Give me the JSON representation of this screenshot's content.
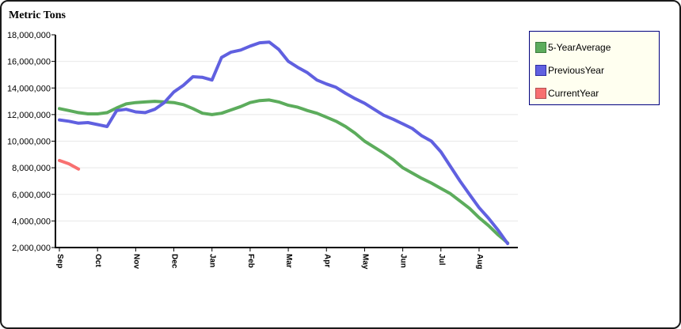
{
  "frame": {
    "background": "#ffffff",
    "border_color": "#1a1a1a"
  },
  "chart_data": {
    "type": "line",
    "title": "Metric Tons",
    "units": "metric tons (values_millions are millions of metric tons)",
    "x_axis": {
      "tick_labels": [
        "Sep",
        "Oct",
        "Nov",
        "Dec",
        "Jan",
        "Feb",
        "Mar",
        "Apr",
        "May",
        "Jun",
        "Jul",
        "Aug"
      ],
      "label_rotation_deg": 90
    },
    "y_axis": {
      "min": 2000000,
      "max": 18000000,
      "tick_step": 2000000,
      "tick_labels": [
        "18,000,000",
        "16,000,000",
        "14,000,000",
        "12,000,000",
        "10,000,000",
        "8,000,000",
        "6,000,000",
        "4,000,000",
        "2,000,000"
      ]
    },
    "grid": {
      "horizontal": true,
      "color": "#e8e8e8"
    },
    "series": [
      {
        "name": "5-YearAverage",
        "color": "#5cac5c",
        "x_start_month": 0,
        "x_step_months": 0.25,
        "values_millions": [
          12.45,
          12.3,
          12.15,
          12.05,
          12.05,
          12.15,
          12.5,
          12.8,
          12.9,
          12.95,
          13.0,
          12.95,
          12.9,
          12.75,
          12.45,
          12.1,
          12.0,
          12.1,
          12.35,
          12.6,
          12.9,
          13.05,
          13.1,
          12.95,
          12.7,
          12.55,
          12.3,
          12.1,
          11.8,
          11.5,
          11.1,
          10.6,
          10.0,
          9.55,
          9.1,
          8.6,
          8.0,
          7.6,
          7.2,
          6.85,
          6.45,
          6.05,
          5.5,
          4.95,
          4.25,
          3.65,
          2.95,
          2.35
        ]
      },
      {
        "name": "PreviousYear",
        "color": "#6060e0",
        "x_start_month": 0,
        "x_step_months": 0.25,
        "values_millions": [
          11.6,
          11.5,
          11.35,
          11.4,
          11.25,
          11.1,
          12.3,
          12.4,
          12.2,
          12.15,
          12.4,
          12.9,
          13.7,
          14.2,
          14.85,
          14.8,
          14.6,
          16.3,
          16.7,
          16.85,
          17.15,
          17.4,
          17.45,
          16.9,
          16.0,
          15.55,
          15.15,
          14.6,
          14.3,
          14.05,
          13.6,
          13.2,
          12.85,
          12.4,
          11.95,
          11.65,
          11.3,
          10.95,
          10.4,
          10.0,
          9.2,
          8.1,
          7.0,
          6.0,
          5.0,
          4.2,
          3.3,
          2.3
        ]
      },
      {
        "name": "CurrentYear",
        "color": "#f87070",
        "x_start_month": 0,
        "x_step_months": 0.25,
        "values_millions": [
          8.55,
          8.3,
          7.9
        ]
      }
    ],
    "legend": {
      "position": "top-right",
      "background": "#fffff0",
      "border_color": "#000080",
      "items": [
        {
          "label": "5-YearAverage",
          "color": "#5cac5c",
          "swatch_border": "#3d7a3d"
        },
        {
          "label": "PreviousYear",
          "color": "#6060e0",
          "swatch_border": "#2e2ea0"
        },
        {
          "label": "CurrentYear",
          "color": "#f87070",
          "swatch_border": "#b05050"
        }
      ]
    }
  }
}
